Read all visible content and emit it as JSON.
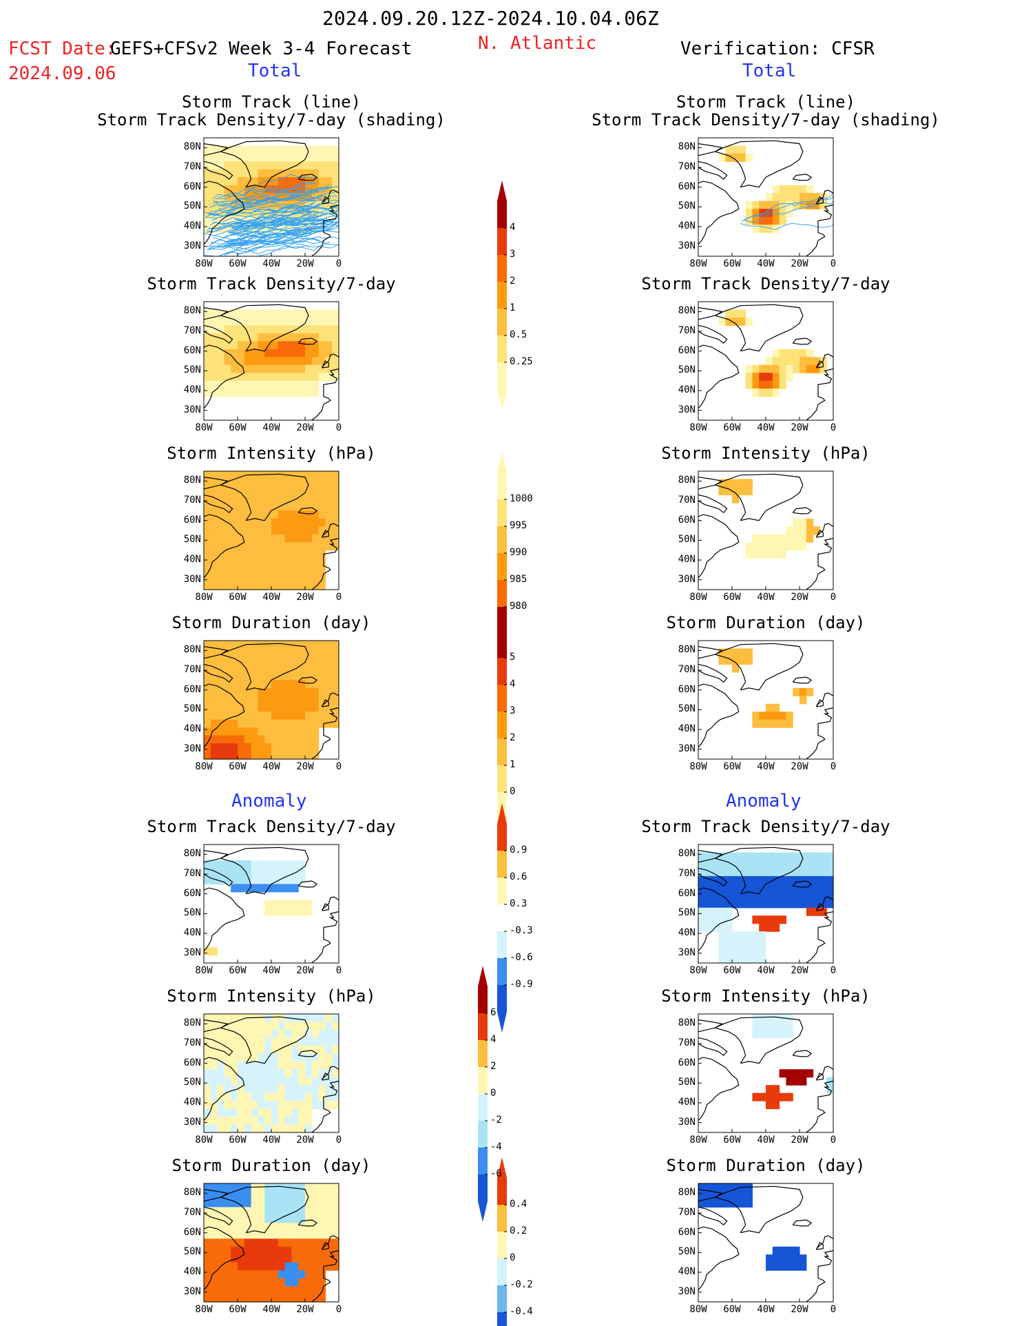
{
  "header": {
    "period": "2024.09.20.12Z-2024.10.04.06Z",
    "fcst_date_label": "FCST Date:",
    "fcst_date": "2024.09.06",
    "model": "GEFS+CFSv2 Week 3-4 Forecast",
    "region": "N. Atlantic",
    "verification": "Verification: CFSR",
    "total_left": "Total",
    "total_right": "Total",
    "anomaly_left": "Anomaly",
    "anomaly_right": "Anomaly"
  },
  "axes": {
    "lat_ticks": [
      "80N",
      "70N",
      "60N",
      "50N",
      "40N",
      "30N"
    ],
    "lon_ticks": [
      "80W",
      "60W",
      "40W",
      "20W",
      "0"
    ]
  },
  "panel_titles": {
    "track_line": "Storm Track (line)",
    "track_shading": "Storm Track Density/7-day (shading)",
    "density": "Storm Track Density/7-day",
    "intensity": "Storm Intensity (hPa)",
    "duration": "Storm Duration (day)"
  },
  "colorbars": {
    "density_total": [
      "4",
      "3",
      "2",
      "1",
      "0.5",
      "0.25"
    ],
    "intensity_total": [
      "1000",
      "995",
      "990",
      "985",
      "980"
    ],
    "duration_total": [
      "5",
      "4",
      "3",
      "2",
      "1",
      "0"
    ],
    "density_anom": [
      "0.9",
      "0.6",
      "0.3",
      "-0.3",
      "-0.6",
      "-0.9"
    ],
    "intensity_anom": [
      "6",
      "4",
      "2",
      "0",
      "-2",
      "-4",
      "-6"
    ],
    "duration_anom": [
      "0.4",
      "0.2",
      "0",
      "-0.2",
      "-0.4"
    ]
  },
  "colors": {
    "warm": [
      "#fff6b3",
      "#fde27a",
      "#fdbd3e",
      "#fc9a12",
      "#f76b09",
      "#e83b0b",
      "#a30000"
    ],
    "cool": [
      "#d6f3fb",
      "#a9e3f5",
      "#6ab7f0",
      "#3a8ef0",
      "#1655d6"
    ],
    "track_line": "#33a1f0",
    "header_red": "#ee2222",
    "header_blue": "#2233ee"
  },
  "chart_data": [
    {
      "type": "heatmap",
      "name": "forecast_track_line_density",
      "xlim": [
        -80,
        0
      ],
      "ylim": [
        25,
        85
      ],
      "hotspot": [
        -25,
        60
      ],
      "level": "2-4"
    },
    {
      "type": "heatmap",
      "name": "verif_track_line_density",
      "xlim": [
        -80,
        0
      ],
      "ylim": [
        25,
        85
      ],
      "hotspot": [
        -40,
        45
      ],
      "level": "up to >4"
    },
    {
      "type": "heatmap",
      "name": "forecast_density_total",
      "xlim": [
        -80,
        0
      ],
      "ylim": [
        25,
        85
      ],
      "range": [
        0.25,
        4
      ]
    },
    {
      "type": "heatmap",
      "name": "verif_density_total",
      "xlim": [
        -80,
        0
      ],
      "ylim": [
        25,
        85
      ],
      "range": [
        0.25,
        4
      ]
    },
    {
      "type": "heatmap",
      "name": "forecast_intensity_total",
      "xlim": [
        -80,
        0
      ],
      "ylim": [
        25,
        85
      ],
      "range": [
        980,
        1000
      ]
    },
    {
      "type": "heatmap",
      "name": "verif_intensity_total",
      "xlim": [
        -80,
        0
      ],
      "ylim": [
        25,
        85
      ],
      "range": [
        980,
        1000
      ]
    },
    {
      "type": "heatmap",
      "name": "forecast_duration_total",
      "xlim": [
        -80,
        0
      ],
      "ylim": [
        25,
        85
      ],
      "range": [
        0,
        5
      ]
    },
    {
      "type": "heatmap",
      "name": "verif_duration_total",
      "xlim": [
        -80,
        0
      ],
      "ylim": [
        25,
        85
      ],
      "range": [
        0,
        5
      ]
    },
    {
      "type": "heatmap",
      "name": "forecast_density_anomaly",
      "xlim": [
        -80,
        0
      ],
      "ylim": [
        25,
        85
      ],
      "range": [
        -0.9,
        0.9
      ]
    },
    {
      "type": "heatmap",
      "name": "verif_density_anomaly",
      "xlim": [
        -80,
        0
      ],
      "ylim": [
        25,
        85
      ],
      "range": [
        -0.9,
        0.9
      ]
    },
    {
      "type": "heatmap",
      "name": "forecast_intensity_anomaly",
      "xlim": [
        -80,
        0
      ],
      "ylim": [
        25,
        85
      ],
      "range": [
        -6,
        6
      ]
    },
    {
      "type": "heatmap",
      "name": "verif_intensity_anomaly",
      "xlim": [
        -80,
        0
      ],
      "ylim": [
        25,
        85
      ],
      "range": [
        -6,
        6
      ]
    },
    {
      "type": "heatmap",
      "name": "forecast_duration_anomaly",
      "xlim": [
        -80,
        0
      ],
      "ylim": [
        25,
        85
      ],
      "range": [
        -0.4,
        0.4
      ]
    },
    {
      "type": "heatmap",
      "name": "verif_duration_anomaly",
      "xlim": [
        -80,
        0
      ],
      "ylim": [
        25,
        85
      ],
      "range": [
        -0.4,
        0.4
      ]
    }
  ]
}
